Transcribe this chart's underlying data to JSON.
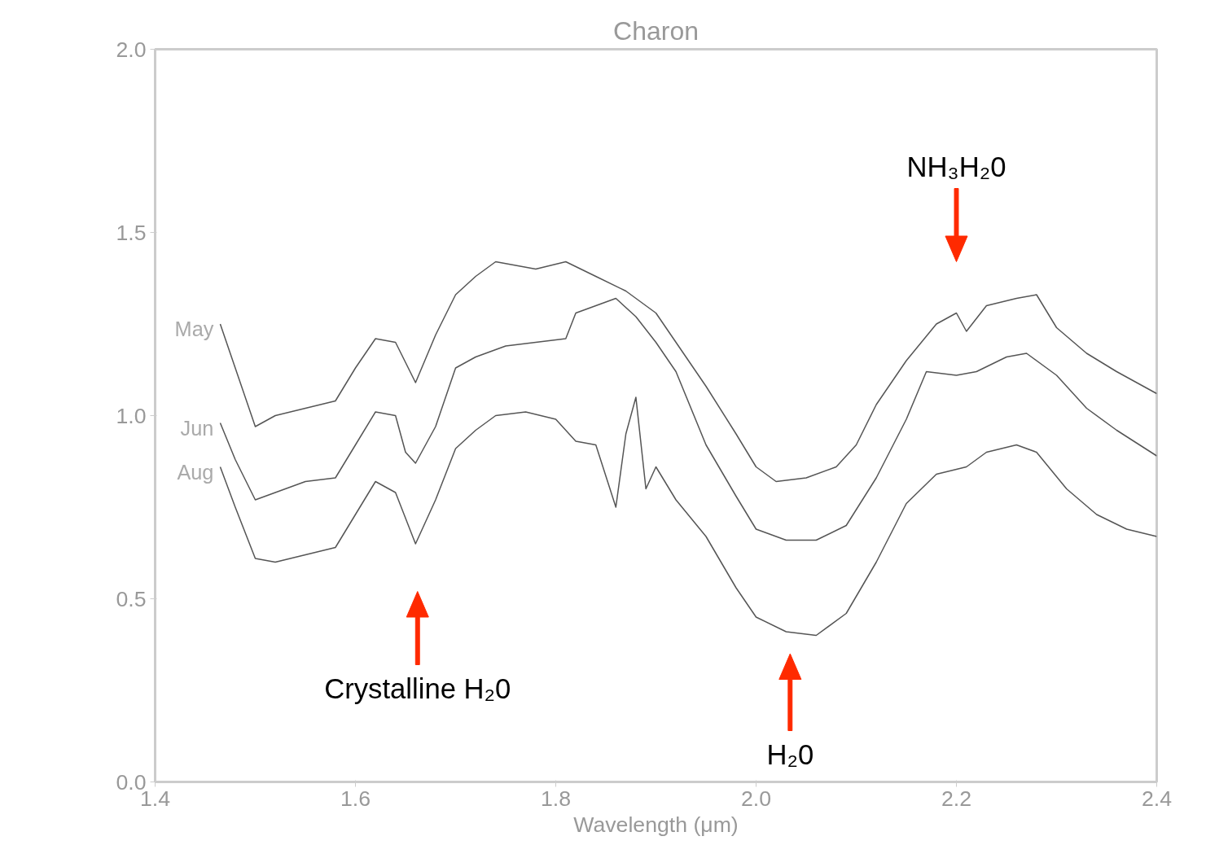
{
  "chart_data": {
    "type": "line",
    "title": "Charon",
    "xlabel": "Wavelength (μm)",
    "xlim": [
      1.4,
      2.4
    ],
    "ylim": [
      0,
      2
    ],
    "xticks": [
      1.4,
      1.6,
      1.8,
      {
        "value": 2,
        "label": "2.0"
      },
      2.2,
      2.4
    ],
    "yticks": [
      {
        "value": 0,
        "label": "0.0"
      },
      {
        "value": 0.5,
        "label": "0.5"
      },
      {
        "value": 1,
        "label": "1.0"
      },
      {
        "value": 1.5,
        "label": "1.5"
      },
      {
        "value": 2,
        "label": "2.0"
      }
    ],
    "grid": false,
    "legend": false,
    "marker": "none",
    "line_style": "solid",
    "series": [
      {
        "name": "May",
        "color": "#555555",
        "x": [
          1.465,
          1.48,
          1.5,
          1.52,
          1.55,
          1.58,
          1.6,
          1.62,
          1.64,
          1.66,
          1.68,
          1.7,
          1.72,
          1.74,
          1.78,
          1.81,
          1.84,
          1.87,
          1.9,
          1.92,
          1.95,
          1.98,
          2.0,
          2.02,
          2.05,
          2.08,
          2.1,
          2.12,
          2.15,
          2.18,
          2.2,
          2.21,
          2.23,
          2.26,
          2.28,
          2.3,
          2.33,
          2.36,
          2.4
        ],
        "values": [
          1.25,
          1.13,
          0.97,
          1.0,
          1.02,
          1.04,
          1.13,
          1.21,
          1.2,
          1.09,
          1.22,
          1.33,
          1.38,
          1.42,
          1.4,
          1.42,
          1.38,
          1.34,
          1.28,
          1.2,
          1.08,
          0.95,
          0.86,
          0.82,
          0.83,
          0.86,
          0.92,
          1.03,
          1.15,
          1.25,
          1.28,
          1.23,
          1.3,
          1.32,
          1.33,
          1.24,
          1.17,
          1.12,
          1.06
        ]
      },
      {
        "name": "Jun",
        "color": "#555555",
        "x": [
          1.465,
          1.48,
          1.5,
          1.52,
          1.55,
          1.58,
          1.6,
          1.62,
          1.64,
          1.65,
          1.66,
          1.68,
          1.7,
          1.72,
          1.75,
          1.78,
          1.81,
          1.82,
          1.84,
          1.86,
          1.88,
          1.9,
          1.92,
          1.95,
          1.98,
          2.0,
          2.03,
          2.06,
          2.09,
          2.12,
          2.15,
          2.17,
          2.2,
          2.22,
          2.25,
          2.27,
          2.3,
          2.33,
          2.36,
          2.4
        ],
        "values": [
          0.98,
          0.88,
          0.77,
          0.79,
          0.82,
          0.83,
          0.92,
          1.01,
          1.0,
          0.9,
          0.87,
          0.97,
          1.13,
          1.16,
          1.19,
          1.2,
          1.21,
          1.28,
          1.3,
          1.32,
          1.27,
          1.2,
          1.12,
          0.92,
          0.78,
          0.69,
          0.66,
          0.66,
          0.7,
          0.83,
          0.99,
          1.12,
          1.11,
          1.12,
          1.16,
          1.17,
          1.11,
          1.02,
          0.96,
          0.89
        ]
      },
      {
        "name": "Aug",
        "color": "#555555",
        "x": [
          1.465,
          1.48,
          1.5,
          1.52,
          1.55,
          1.58,
          1.6,
          1.62,
          1.64,
          1.66,
          1.68,
          1.7,
          1.72,
          1.74,
          1.77,
          1.8,
          1.82,
          1.84,
          1.86,
          1.87,
          1.88,
          1.89,
          1.9,
          1.92,
          1.95,
          1.98,
          2.0,
          2.03,
          2.06,
          2.09,
          2.12,
          2.15,
          2.18,
          2.21,
          2.23,
          2.26,
          2.28,
          2.31,
          2.34,
          2.37,
          2.4
        ],
        "values": [
          0.86,
          0.75,
          0.61,
          0.6,
          0.62,
          0.64,
          0.73,
          0.82,
          0.79,
          0.65,
          0.77,
          0.91,
          0.96,
          1.0,
          1.01,
          0.99,
          0.93,
          0.92,
          0.75,
          0.95,
          1.05,
          0.8,
          0.86,
          0.77,
          0.67,
          0.53,
          0.45,
          0.41,
          0.4,
          0.46,
          0.6,
          0.76,
          0.84,
          0.86,
          0.9,
          0.92,
          0.9,
          0.8,
          0.73,
          0.69,
          0.67
        ]
      }
    ],
    "annotations": [
      "Crystalline H₂0",
      "H₂0",
      "NH₃H₂0"
    ]
  }
}
